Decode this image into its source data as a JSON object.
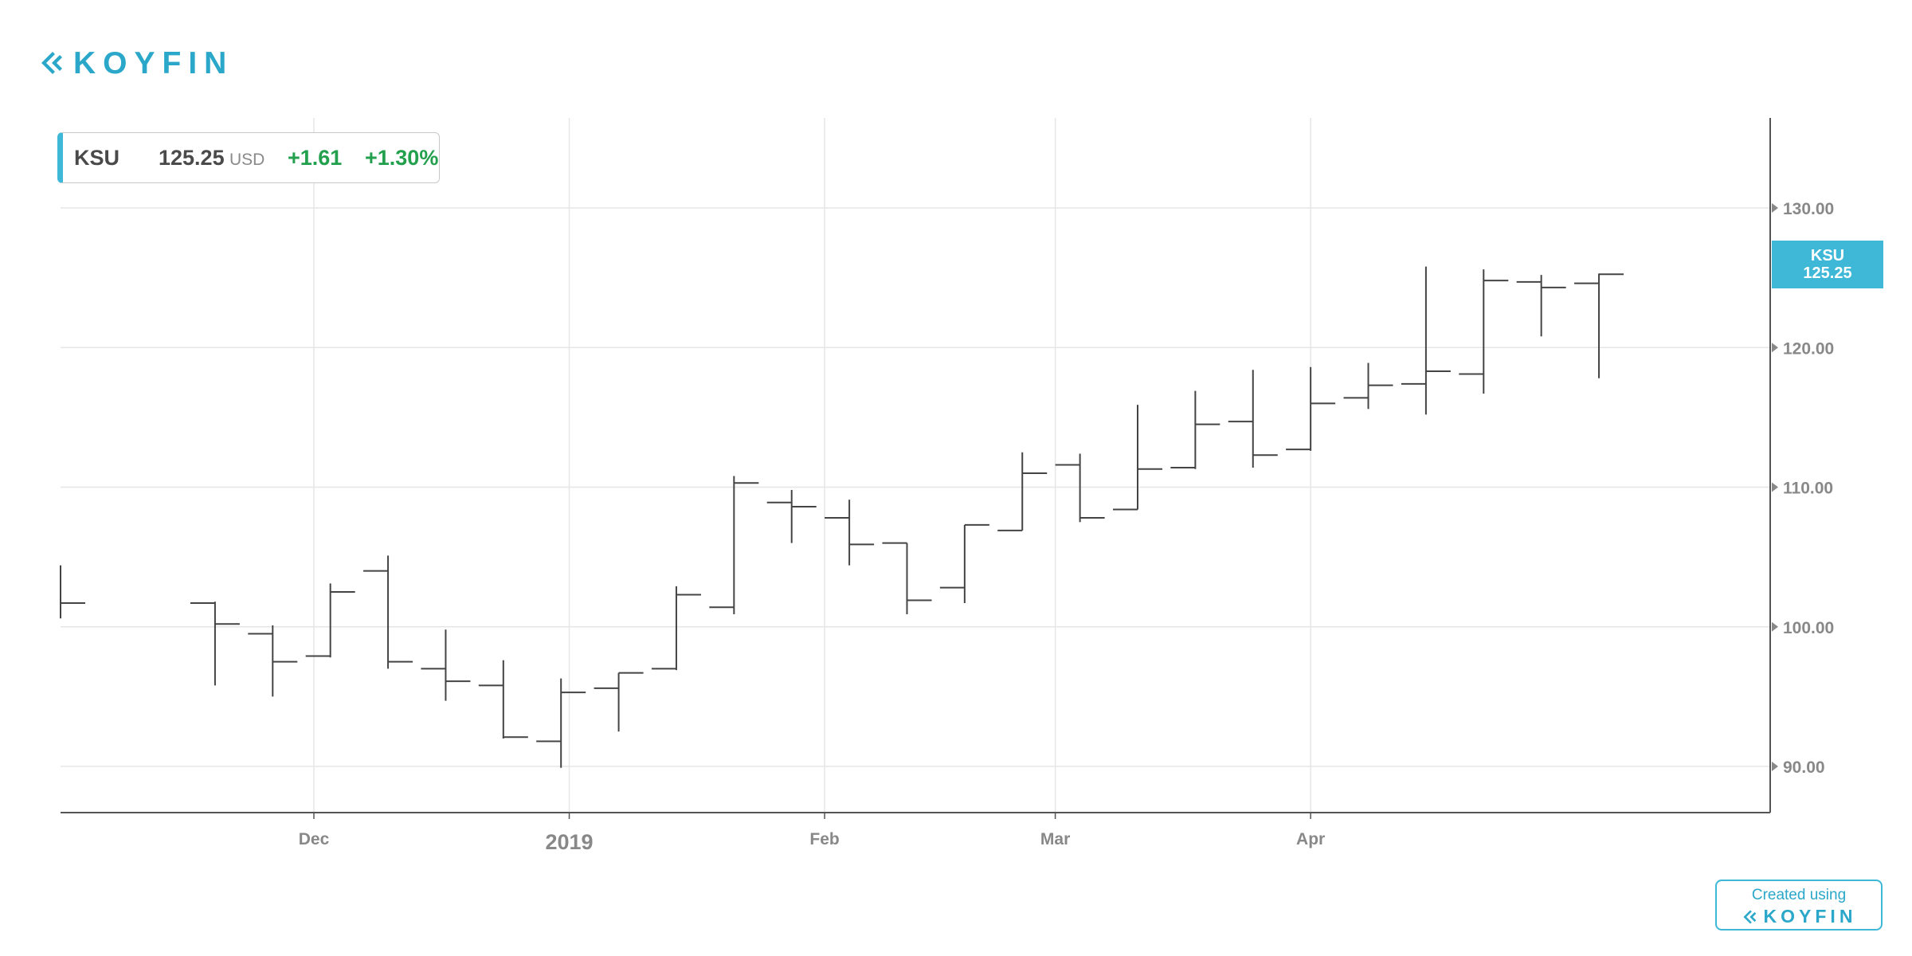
{
  "brand": {
    "name": "KOYFIN",
    "color": "#2aa7c9",
    "icon": "koyfin-logo-icon"
  },
  "info_box": {
    "symbol": "KSU",
    "price": "125.25",
    "currency": "USD",
    "change": "+1.61",
    "change_pct": "+1.30%",
    "accent_color": "#3fb8d8",
    "positive_color": "#23a04d"
  },
  "price_badge": {
    "symbol": "KSU",
    "price": "125.25"
  },
  "credit": {
    "text": "Created using",
    "brand": "KOYFIN"
  },
  "chart_data": {
    "type": "ohlc",
    "period": "weekly",
    "series_name": "KSU",
    "x": [
      "2018-11-19",
      "2018-11-26",
      "2018-12-03",
      "2018-12-10",
      "2018-12-17",
      "2018-12-24",
      "2018-12-31",
      "2019-01-07",
      "2019-01-14",
      "2019-01-21",
      "2019-01-28",
      "2019-02-04",
      "2019-02-11",
      "2019-02-18",
      "2019-02-25",
      "2019-03-04",
      "2019-03-11",
      "2019-03-18",
      "2019-03-25",
      "2019-04-01",
      "2019-04-08",
      "2019-04-15",
      "2019-04-22",
      "2019-04-29"
    ],
    "open": [
      101.7,
      99.5,
      97.9,
      104.0,
      97.0,
      95.8,
      91.8,
      95.6,
      97.0,
      101.4,
      108.9,
      107.8,
      106.0,
      102.8,
      106.9,
      111.6,
      108.4,
      111.4,
      114.7,
      112.7,
      116.4,
      117.4,
      118.1,
      124.7
    ],
    "high": [
      101.8,
      100.1,
      103.1,
      105.1,
      99.8,
      97.6,
      96.3,
      96.7,
      102.9,
      110.8,
      109.8,
      109.1,
      106.0,
      107.3,
      112.5,
      112.4,
      115.9,
      116.9,
      118.4,
      118.6,
      118.9,
      125.8,
      125.6,
      125.2
    ],
    "low": [
      95.8,
      95.0,
      97.8,
      97.0,
      94.7,
      92.0,
      89.9,
      92.5,
      96.9,
      100.9,
      106.0,
      104.4,
      100.9,
      101.7,
      106.9,
      107.5,
      108.4,
      111.3,
      111.4,
      112.6,
      115.6,
      115.2,
      116.7,
      120.8
    ],
    "close": [
      100.2,
      97.5,
      102.5,
      97.5,
      96.1,
      92.1,
      95.3,
      96.7,
      102.3,
      110.3,
      108.6,
      105.9,
      101.9,
      107.3,
      111.0,
      107.8,
      111.3,
      114.5,
      112.3,
      116.0,
      117.3,
      118.3,
      124.8,
      124.3
    ],
    "extra_bars": [
      {
        "x": "2019-05-06",
        "open": 124.6,
        "high": 125.3,
        "low": 117.8,
        "close": 125.25
      }
    ],
    "lead_in_bar": {
      "x": "2018-11-12",
      "high": 104.4,
      "low": 100.6,
      "close": 101.7
    },
    "x_ticks": [
      {
        "date": "2018-12-01",
        "label": "Dec",
        "bold": false
      },
      {
        "date": "2019-01-01",
        "label": "2019",
        "bold": true
      },
      {
        "date": "2019-02-01",
        "label": "Feb",
        "bold": false
      },
      {
        "date": "2019-03-01",
        "label": "Mar",
        "bold": false
      },
      {
        "date": "2019-04-01",
        "label": "Apr",
        "bold": false
      }
    ],
    "y_ticks": [
      "130.00",
      "120.00",
      "110.00",
      "100.00",
      "90.00"
    ],
    "y_axis_position": "right",
    "last_price": 125.25,
    "grid": true,
    "colors": {
      "bar": "#444444",
      "grid": "#e6e6e6",
      "axis": "#555555",
      "tick_text": "#888888"
    }
  }
}
